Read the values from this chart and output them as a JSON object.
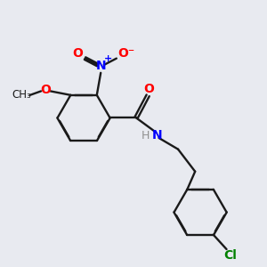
{
  "bg_color": "#e8eaf0",
  "bond_color": "#1a1a1a",
  "atom_colors": {
    "O": "#ff0000",
    "N": "#0000ff",
    "Cl": "#008000",
    "H": "#909090",
    "C": "#1a1a1a"
  }
}
